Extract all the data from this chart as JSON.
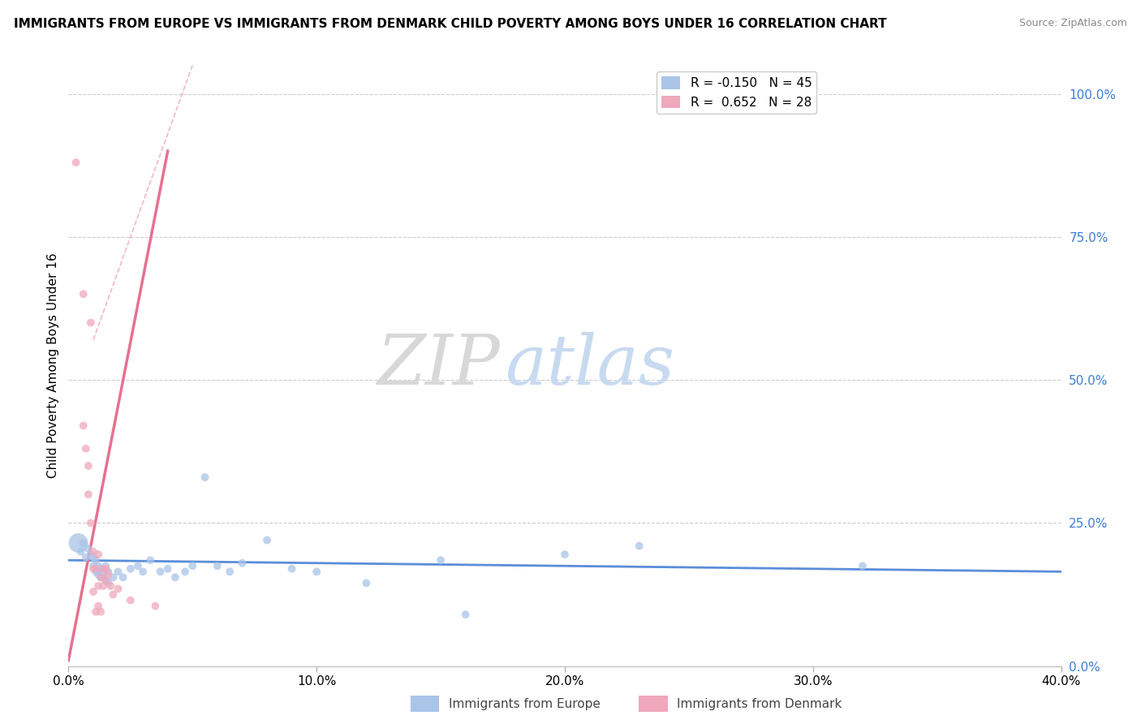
{
  "title": "IMMIGRANTS FROM EUROPE VS IMMIGRANTS FROM DENMARK CHILD POVERTY AMONG BOYS UNDER 16 CORRELATION CHART",
  "source": "Source: ZipAtlas.com",
  "ylabel": "Child Poverty Among Boys Under 16",
  "xlim": [
    0.0,
    0.4
  ],
  "ylim": [
    0.0,
    1.05
  ],
  "xtick_vals": [
    0.0,
    0.1,
    0.2,
    0.3,
    0.4
  ],
  "xtick_labels": [
    "0.0%",
    "10.0%",
    "20.0%",
    "30.0%",
    "40.0%"
  ],
  "ytick_right_vals": [
    1.0,
    0.75,
    0.5,
    0.25,
    0.0
  ],
  "ytick_right_labels": [
    "100.0%",
    "75.0%",
    "50.0%",
    "25.0%",
    "0.0%"
  ],
  "legend1_label": "R = -0.150   N = 45",
  "legend2_label": "R =  0.652   N = 28",
  "color_europe": "#aac4e8",
  "color_denmark": "#f0a8bc",
  "color_europe_line": "#5b8dd9",
  "color_denmark_line": "#e87090",
  "watermark_zip": "ZIP",
  "watermark_atlas": "atlas",
  "europe_scatter": [
    [
      0.004,
      0.215
    ],
    [
      0.005,
      0.2
    ],
    [
      0.006,
      0.215
    ],
    [
      0.007,
      0.19
    ],
    [
      0.008,
      0.205
    ],
    [
      0.009,
      0.195
    ],
    [
      0.01,
      0.19
    ],
    [
      0.01,
      0.175
    ],
    [
      0.011,
      0.185
    ],
    [
      0.011,
      0.165
    ],
    [
      0.012,
      0.175
    ],
    [
      0.012,
      0.16
    ],
    [
      0.013,
      0.17
    ],
    [
      0.013,
      0.155
    ],
    [
      0.014,
      0.165
    ],
    [
      0.014,
      0.155
    ],
    [
      0.015,
      0.175
    ],
    [
      0.015,
      0.15
    ],
    [
      0.016,
      0.165
    ],
    [
      0.016,
      0.145
    ],
    [
      0.018,
      0.155
    ],
    [
      0.02,
      0.165
    ],
    [
      0.022,
      0.155
    ],
    [
      0.025,
      0.17
    ],
    [
      0.028,
      0.175
    ],
    [
      0.03,
      0.165
    ],
    [
      0.033,
      0.185
    ],
    [
      0.037,
      0.165
    ],
    [
      0.04,
      0.17
    ],
    [
      0.043,
      0.155
    ],
    [
      0.047,
      0.165
    ],
    [
      0.05,
      0.175
    ],
    [
      0.055,
      0.33
    ],
    [
      0.06,
      0.175
    ],
    [
      0.065,
      0.165
    ],
    [
      0.07,
      0.18
    ],
    [
      0.08,
      0.22
    ],
    [
      0.09,
      0.17
    ],
    [
      0.1,
      0.165
    ],
    [
      0.12,
      0.145
    ],
    [
      0.15,
      0.185
    ],
    [
      0.16,
      0.09
    ],
    [
      0.2,
      0.195
    ],
    [
      0.23,
      0.21
    ],
    [
      0.32,
      0.175
    ]
  ],
  "europe_sizes": [
    50,
    50,
    50,
    50,
    50,
    50,
    50,
    50,
    50,
    50,
    50,
    50,
    50,
    50,
    50,
    50,
    50,
    50,
    50,
    50,
    50,
    50,
    50,
    50,
    50,
    50,
    50,
    50,
    50,
    50,
    50,
    50,
    50,
    50,
    50,
    50,
    50,
    50,
    50,
    50,
    50,
    50,
    50,
    50,
    50
  ],
  "europe_big_idx": 0,
  "europe_big_size": 300,
  "denmark_scatter": [
    [
      0.003,
      0.88
    ],
    [
      0.006,
      0.65
    ],
    [
      0.006,
      0.42
    ],
    [
      0.007,
      0.38
    ],
    [
      0.008,
      0.35
    ],
    [
      0.008,
      0.3
    ],
    [
      0.009,
      0.25
    ],
    [
      0.009,
      0.6
    ],
    [
      0.01,
      0.2
    ],
    [
      0.01,
      0.17
    ],
    [
      0.01,
      0.13
    ],
    [
      0.011,
      0.17
    ],
    [
      0.011,
      0.095
    ],
    [
      0.012,
      0.14
    ],
    [
      0.012,
      0.105
    ],
    [
      0.012,
      0.195
    ],
    [
      0.013,
      0.155
    ],
    [
      0.013,
      0.095
    ],
    [
      0.014,
      0.17
    ],
    [
      0.014,
      0.14
    ],
    [
      0.015,
      0.17
    ],
    [
      0.015,
      0.15
    ],
    [
      0.016,
      0.16
    ],
    [
      0.017,
      0.14
    ],
    [
      0.018,
      0.125
    ],
    [
      0.02,
      0.135
    ],
    [
      0.025,
      0.115
    ],
    [
      0.035,
      0.105
    ]
  ],
  "denmark_sizes": [
    50,
    50,
    50,
    50,
    50,
    50,
    50,
    50,
    50,
    50,
    50,
    50,
    50,
    50,
    50,
    50,
    50,
    50,
    50,
    50,
    50,
    50,
    50,
    50,
    50,
    50,
    50,
    50
  ],
  "europe_trend_x": [
    0.0,
    0.4
  ],
  "europe_trend_y": [
    0.185,
    0.165
  ],
  "denmark_trend_x": [
    0.0,
    0.04
  ],
  "denmark_trend_y": [
    0.01,
    0.9
  ],
  "dashed_trend_x": [
    0.01,
    0.05
  ],
  "dashed_trend_y": [
    0.57,
    1.05
  ]
}
